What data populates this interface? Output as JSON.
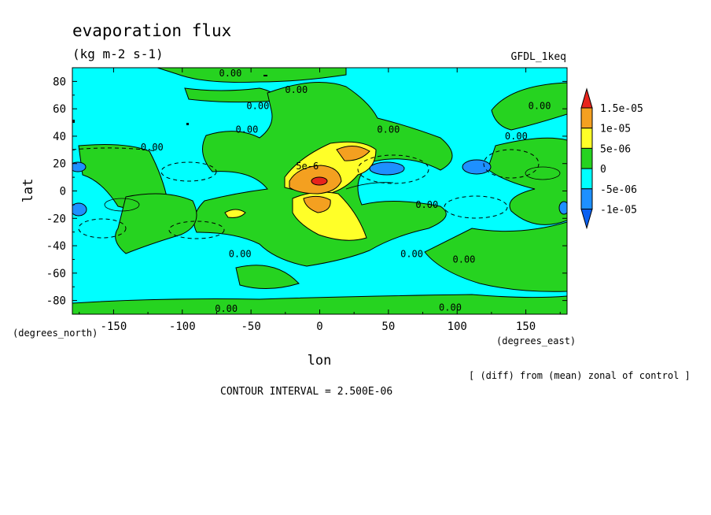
{
  "chart_data": {
    "type": "contour",
    "title": "evaporation flux",
    "units": "(kg m-2 s-1)",
    "model": "GFDL_1keq",
    "xlabel": "lon",
    "ylabel": "lat",
    "x_units": "(degrees_east)",
    "y_units": "(degrees_north)",
    "xlim": [
      -180,
      180
    ],
    "ylim": [
      -90,
      90
    ],
    "x_ticks": [
      -150,
      -100,
      -50,
      0,
      50,
      100,
      150
    ],
    "y_ticks": [
      80,
      60,
      40,
      20,
      0,
      -20,
      -40,
      -60,
      -80
    ],
    "contour_interval_label": "CONTOUR INTERVAL = 2.500E-06",
    "note": "[ (diff) from (mean) zonal of control ]",
    "colorbar": {
      "labels": [
        "1.5e-05",
        "1e-05",
        "5e-06",
        "0",
        "-5e-06",
        "-1e-05"
      ],
      "levels": [
        1.5e-05,
        1e-05,
        5e-06,
        0,
        -5e-06,
        -1e-05
      ],
      "colors": [
        "#e8241c",
        "#f4a020",
        "#ffff28",
        "#26d320",
        "#00ffff",
        "#1e90ff",
        "#0a60f0"
      ]
    },
    "contour_labels": [
      {
        "text": "0.00",
        "lon": -65,
        "lat": 86
      },
      {
        "text": "0.00",
        "lon": -17,
        "lat": 74
      },
      {
        "text": "0.00",
        "lon": -45,
        "lat": 62
      },
      {
        "text": "0.00",
        "lon": 160,
        "lat": 62
      },
      {
        "text": "0.00",
        "lon": -53,
        "lat": 45
      },
      {
        "text": "0.00",
        "lon": 50,
        "lat": 45
      },
      {
        "text": "0.00",
        "lon": 143,
        "lat": 40
      },
      {
        "text": "0.00",
        "lon": -122,
        "lat": 32
      },
      {
        "text": "5e-6",
        "lon": -9,
        "lat": 18
      },
      {
        "text": "0.00",
        "lon": 78,
        "lat": -10
      },
      {
        "text": "0.00",
        "lon": -58,
        "lat": -46
      },
      {
        "text": "0.00",
        "lon": 67,
        "lat": -46
      },
      {
        "text": "0.00",
        "lon": 105,
        "lat": -50
      },
      {
        "text": "0.00",
        "lon": -68,
        "lat": -86
      },
      {
        "text": "0.00",
        "lon": 95,
        "lat": -85
      }
    ],
    "anomaly_centers": [
      {
        "lon": 0,
        "lat": 6,
        "value": 1.5e-05
      },
      {
        "lon": 0,
        "lat": -8,
        "value": 1e-05
      },
      {
        "lon": 30,
        "lat": 15,
        "value": 5e-06
      },
      {
        "lon": -70,
        "lat": -16,
        "value": 5e-06
      },
      {
        "lon": 50,
        "lat": 15,
        "value": -7.5e-06
      },
      {
        "lon": 115,
        "lat": 17,
        "value": -7.5e-06
      },
      {
        "lon": -170,
        "lat": 15,
        "value": -7.5e-06
      },
      {
        "lon": -175,
        "lat": -14,
        "value": -7.5e-06
      },
      {
        "lon": 180,
        "lat": -12,
        "value": -7.5e-06
      },
      {
        "lon": -130,
        "lat": -20,
        "value": -2.5e-06
      },
      {
        "lon": -100,
        "lat": -25,
        "value": -2.5e-06
      },
      {
        "lon": 115,
        "lat": -17,
        "value": -2.5e-06
      }
    ]
  }
}
